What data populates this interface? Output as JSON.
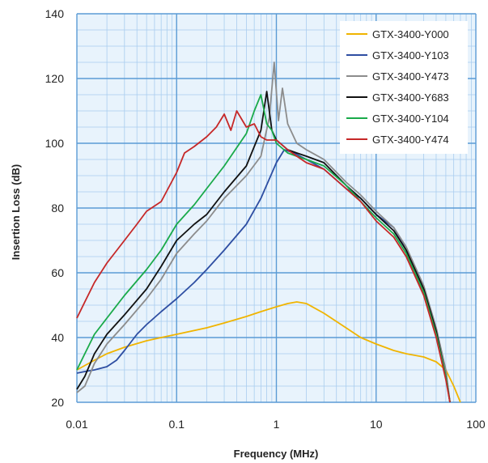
{
  "chart_data": {
    "type": "line",
    "title": "",
    "xlabel": "Frequency (MHz)",
    "ylabel": "Insertion Loss (dB)",
    "xscale": "log",
    "xlim": [
      0.01,
      100
    ],
    "ylim": [
      20,
      140
    ],
    "x_ticks": [
      0.01,
      0.1,
      1,
      10,
      100
    ],
    "x_tick_labels": [
      "0.01",
      "0.1",
      "1",
      "10",
      "100"
    ],
    "y_ticks": [
      20,
      40,
      60,
      80,
      100,
      120,
      140
    ],
    "y_tick_labels": [
      "20",
      "40",
      "60",
      "80",
      "100",
      "120",
      "140"
    ],
    "grid": true,
    "background": "#e8f3fc",
    "legend_position": "top-right",
    "series": [
      {
        "name": "GTX-3400-Y000",
        "color": "#f0b400",
        "points": [
          [
            0.01,
            30
          ],
          [
            0.015,
            33
          ],
          [
            0.02,
            35
          ],
          [
            0.03,
            37
          ],
          [
            0.05,
            39
          ],
          [
            0.07,
            40
          ],
          [
            0.1,
            41
          ],
          [
            0.2,
            43
          ],
          [
            0.3,
            44.5
          ],
          [
            0.5,
            46.5
          ],
          [
            0.7,
            48
          ],
          [
            1,
            49.5
          ],
          [
            1.3,
            50.5
          ],
          [
            1.6,
            51
          ],
          [
            2,
            50.5
          ],
          [
            3,
            47.5
          ],
          [
            5,
            43
          ],
          [
            7,
            40
          ],
          [
            10,
            38
          ],
          [
            15,
            36
          ],
          [
            20,
            35
          ],
          [
            30,
            34
          ],
          [
            40,
            32.5
          ],
          [
            50,
            30
          ],
          [
            60,
            25
          ],
          [
            70,
            20
          ]
        ]
      },
      {
        "name": "GTX-3400-Y103",
        "color": "#2e4ea2",
        "points": [
          [
            0.01,
            29
          ],
          [
            0.012,
            29.5
          ],
          [
            0.015,
            30
          ],
          [
            0.02,
            31
          ],
          [
            0.025,
            33
          ],
          [
            0.03,
            36
          ],
          [
            0.04,
            41
          ],
          [
            0.05,
            44
          ],
          [
            0.07,
            48
          ],
          [
            0.1,
            52
          ],
          [
            0.15,
            57
          ],
          [
            0.2,
            61
          ],
          [
            0.3,
            67
          ],
          [
            0.5,
            75
          ],
          [
            0.7,
            83
          ],
          [
            1,
            94
          ],
          [
            1.2,
            98
          ],
          [
            1.5,
            97
          ],
          [
            2,
            95
          ],
          [
            3,
            92
          ],
          [
            5,
            86
          ],
          [
            7,
            83
          ],
          [
            10,
            78
          ],
          [
            15,
            74
          ],
          [
            20,
            67
          ],
          [
            30,
            55
          ],
          [
            40,
            42
          ],
          [
            50,
            29
          ],
          [
            55,
            20
          ]
        ]
      },
      {
        "name": "GTX-3400-Y473",
        "color": "#8c8c8c",
        "points": [
          [
            0.01,
            23
          ],
          [
            0.012,
            25
          ],
          [
            0.015,
            32
          ],
          [
            0.02,
            38
          ],
          [
            0.03,
            44
          ],
          [
            0.05,
            52
          ],
          [
            0.07,
            58
          ],
          [
            0.1,
            66
          ],
          [
            0.15,
            72
          ],
          [
            0.2,
            76
          ],
          [
            0.3,
            83
          ],
          [
            0.5,
            90
          ],
          [
            0.7,
            96
          ],
          [
            0.85,
            108
          ],
          [
            0.95,
            125
          ],
          [
            1.05,
            107
          ],
          [
            1.15,
            117
          ],
          [
            1.3,
            106
          ],
          [
            1.6,
            100
          ],
          [
            2,
            98
          ],
          [
            3,
            95
          ],
          [
            5,
            88
          ],
          [
            7,
            84
          ],
          [
            10,
            79
          ],
          [
            15,
            74
          ],
          [
            20,
            68
          ],
          [
            30,
            56
          ],
          [
            40,
            43
          ],
          [
            50,
            30
          ],
          [
            55,
            20
          ]
        ]
      },
      {
        "name": "GTX-3400-Y683",
        "color": "#111111",
        "points": [
          [
            0.01,
            24
          ],
          [
            0.012,
            28
          ],
          [
            0.015,
            35
          ],
          [
            0.02,
            41
          ],
          [
            0.03,
            47
          ],
          [
            0.05,
            55
          ],
          [
            0.07,
            62
          ],
          [
            0.1,
            70
          ],
          [
            0.15,
            75
          ],
          [
            0.2,
            78
          ],
          [
            0.3,
            85
          ],
          [
            0.5,
            93
          ],
          [
            0.6,
            99
          ],
          [
            0.7,
            104
          ],
          [
            0.8,
            116
          ],
          [
            0.9,
            104
          ],
          [
            1,
            101
          ],
          [
            1.3,
            98
          ],
          [
            1.6,
            97
          ],
          [
            2,
            96
          ],
          [
            3,
            94
          ],
          [
            5,
            87
          ],
          [
            7,
            83
          ],
          [
            10,
            78
          ],
          [
            15,
            73
          ],
          [
            20,
            67
          ],
          [
            30,
            55
          ],
          [
            40,
            42
          ],
          [
            50,
            28
          ],
          [
            55,
            20
          ]
        ]
      },
      {
        "name": "GTX-3400-Y104",
        "color": "#1aaa4a",
        "points": [
          [
            0.01,
            30
          ],
          [
            0.012,
            35
          ],
          [
            0.015,
            41
          ],
          [
            0.02,
            46
          ],
          [
            0.03,
            53
          ],
          [
            0.05,
            61
          ],
          [
            0.07,
            67
          ],
          [
            0.1,
            75
          ],
          [
            0.15,
            81
          ],
          [
            0.2,
            86
          ],
          [
            0.3,
            93
          ],
          [
            0.5,
            103
          ],
          [
            0.6,
            110
          ],
          [
            0.7,
            115
          ],
          [
            0.8,
            106
          ],
          [
            0.9,
            104
          ],
          [
            1,
            100
          ],
          [
            1.3,
            97
          ],
          [
            1.6,
            96
          ],
          [
            2,
            95
          ],
          [
            3,
            93
          ],
          [
            5,
            87
          ],
          [
            7,
            82
          ],
          [
            10,
            77
          ],
          [
            15,
            72
          ],
          [
            20,
            66
          ],
          [
            30,
            54
          ],
          [
            40,
            41
          ],
          [
            50,
            28
          ],
          [
            55,
            20
          ]
        ]
      },
      {
        "name": "GTX-3400-Y474",
        "color": "#c62828",
        "points": [
          [
            0.01,
            46
          ],
          [
            0.012,
            51
          ],
          [
            0.015,
            57
          ],
          [
            0.02,
            63
          ],
          [
            0.03,
            70
          ],
          [
            0.04,
            75
          ],
          [
            0.05,
            79
          ],
          [
            0.07,
            82
          ],
          [
            0.1,
            91
          ],
          [
            0.12,
            97
          ],
          [
            0.15,
            99
          ],
          [
            0.2,
            102
          ],
          [
            0.25,
            105
          ],
          [
            0.3,
            109
          ],
          [
            0.35,
            104
          ],
          [
            0.4,
            110
          ],
          [
            0.5,
            105
          ],
          [
            0.6,
            106
          ],
          [
            0.7,
            102
          ],
          [
            0.8,
            101
          ],
          [
            1,
            101
          ],
          [
            1.3,
            98
          ],
          [
            1.6,
            96
          ],
          [
            2,
            94
          ],
          [
            3,
            92
          ],
          [
            5,
            86
          ],
          [
            7,
            82
          ],
          [
            10,
            76
          ],
          [
            15,
            71
          ],
          [
            20,
            65
          ],
          [
            30,
            53
          ],
          [
            40,
            40
          ],
          [
            50,
            27
          ],
          [
            55,
            20
          ]
        ]
      }
    ]
  }
}
